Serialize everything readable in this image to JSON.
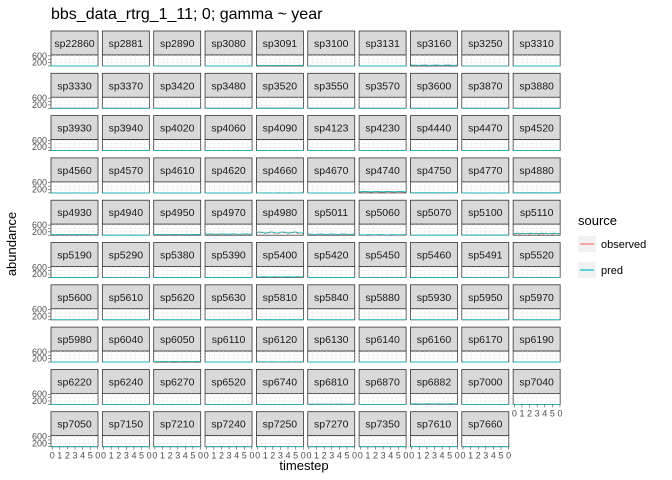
{
  "chart_data": {
    "type": "line",
    "title": "bbs_data_rtrg_1_11; 0; gamma ~ year",
    "xlabel": "timestep",
    "ylabel": "abundance",
    "x_ticks": [
      "0",
      "1",
      "2",
      "3",
      "4",
      "5",
      "0"
    ],
    "y_ticks": [
      "0",
      "200",
      "400",
      "600"
    ],
    "ylim": [
      0,
      650
    ],
    "xlim": [
      0,
      50
    ],
    "grid": true,
    "legend": {
      "title": "source",
      "position": "right",
      "entries": [
        {
          "label": "observed",
          "color": "#F8766D"
        },
        {
          "label": "pred",
          "color": "#00BFC4"
        }
      ]
    },
    "panels": [
      {
        "label": "sp22860",
        "level": 3
      },
      {
        "label": "sp2881",
        "level": 2
      },
      {
        "label": "sp2890",
        "level": 2
      },
      {
        "label": "sp3080",
        "level": 3
      },
      {
        "label": "sp3091",
        "level": 40
      },
      {
        "label": "sp3100",
        "level": 2
      },
      {
        "label": "sp3131",
        "level": 3
      },
      {
        "label": "sp3160",
        "level": 55
      },
      {
        "label": "sp3250",
        "level": 2
      },
      {
        "label": "sp3310",
        "level": 3
      },
      {
        "label": "sp3330",
        "level": 3
      },
      {
        "label": "sp3370",
        "level": 2
      },
      {
        "label": "sp3420",
        "level": 2
      },
      {
        "label": "sp3480",
        "level": 2
      },
      {
        "label": "sp3520",
        "level": 8
      },
      {
        "label": "sp3550",
        "level": 2
      },
      {
        "label": "sp3570",
        "level": 2
      },
      {
        "label": "sp3600",
        "level": 3
      },
      {
        "label": "sp3870",
        "level": 2
      },
      {
        "label": "sp3880",
        "level": 2
      },
      {
        "label": "sp3930",
        "level": 2
      },
      {
        "label": "sp3940",
        "level": 2
      },
      {
        "label": "sp4020",
        "level": 2
      },
      {
        "label": "sp4060",
        "level": 2
      },
      {
        "label": "sp4090",
        "level": 3
      },
      {
        "label": "sp4123",
        "level": 2
      },
      {
        "label": "sp4230",
        "level": 2
      },
      {
        "label": "sp4440",
        "level": 2
      },
      {
        "label": "sp4470",
        "level": 2
      },
      {
        "label": "sp4520",
        "level": 3
      },
      {
        "label": "sp4560",
        "level": 3
      },
      {
        "label": "sp4570",
        "level": 2
      },
      {
        "label": "sp4610",
        "level": 2
      },
      {
        "label": "sp4620",
        "level": 3
      },
      {
        "label": "sp4660",
        "level": 4
      },
      {
        "label": "sp4670",
        "level": 2
      },
      {
        "label": "sp4740",
        "level": 90
      },
      {
        "label": "sp4750",
        "level": 8
      },
      {
        "label": "sp4770",
        "level": 2
      },
      {
        "label": "sp4880",
        "level": 6
      },
      {
        "label": "sp4930",
        "level": 40
      },
      {
        "label": "sp4940",
        "level": 4
      },
      {
        "label": "sp4950",
        "level": 50
      },
      {
        "label": "sp4970",
        "level": 80
      },
      {
        "label": "sp4980",
        "level": 190
      },
      {
        "label": "sp5011",
        "level": 70
      },
      {
        "label": "sp5060",
        "level": 30
      },
      {
        "label": "sp5070",
        "level": 5
      },
      {
        "label": "sp5100",
        "level": 10
      },
      {
        "label": "sp5110",
        "level": 120
      },
      {
        "label": "sp5190",
        "level": 3
      },
      {
        "label": "sp5290",
        "level": 2
      },
      {
        "label": "sp5380",
        "level": 3
      },
      {
        "label": "sp5390",
        "level": 4
      },
      {
        "label": "sp5400",
        "level": 45
      },
      {
        "label": "sp5420",
        "level": 5
      },
      {
        "label": "sp5450",
        "level": 2
      },
      {
        "label": "sp5460",
        "level": 3
      },
      {
        "label": "sp5491",
        "level": 2
      },
      {
        "label": "sp5520",
        "level": 2
      },
      {
        "label": "sp5600",
        "level": 2
      },
      {
        "label": "sp5610",
        "level": 2
      },
      {
        "label": "sp5620",
        "level": 2
      },
      {
        "label": "sp5630",
        "level": 2
      },
      {
        "label": "sp5810",
        "level": 6
      },
      {
        "label": "sp5840",
        "level": 2
      },
      {
        "label": "sp5880",
        "level": 2
      },
      {
        "label": "sp5930",
        "level": 2
      },
      {
        "label": "sp5950",
        "level": 2
      },
      {
        "label": "sp5970",
        "level": 2
      },
      {
        "label": "sp5980",
        "level": 2
      },
      {
        "label": "sp6040",
        "level": 2
      },
      {
        "label": "sp6050",
        "level": 40
      },
      {
        "label": "sp6110",
        "level": 3
      },
      {
        "label": "sp6120",
        "level": 20
      },
      {
        "label": "sp6130",
        "level": 3
      },
      {
        "label": "sp6140",
        "level": 2
      },
      {
        "label": "sp6160",
        "level": 3
      },
      {
        "label": "sp6170",
        "level": 2
      },
      {
        "label": "sp6190",
        "level": 2
      },
      {
        "label": "sp6220",
        "level": 2
      },
      {
        "label": "sp6240",
        "level": 2
      },
      {
        "label": "sp6270",
        "level": 2
      },
      {
        "label": "sp6520",
        "level": 2
      },
      {
        "label": "sp6740",
        "level": 3
      },
      {
        "label": "sp6810",
        "level": 15
      },
      {
        "label": "sp6870",
        "level": 3
      },
      {
        "label": "sp6882",
        "level": 35
      },
      {
        "label": "sp7000",
        "level": 2
      },
      {
        "label": "sp7040",
        "level": 2
      },
      {
        "label": "sp7050",
        "level": 2
      },
      {
        "label": "sp7150",
        "level": 2
      },
      {
        "label": "sp7210",
        "level": 2
      },
      {
        "label": "sp7240",
        "level": 2
      },
      {
        "label": "sp7250",
        "level": 5
      },
      {
        "label": "sp7270",
        "level": 2
      },
      {
        "label": "sp7350",
        "level": 2
      },
      {
        "label": "sp7610",
        "level": 8
      },
      {
        "label": "sp7660",
        "level": 2
      }
    ]
  }
}
